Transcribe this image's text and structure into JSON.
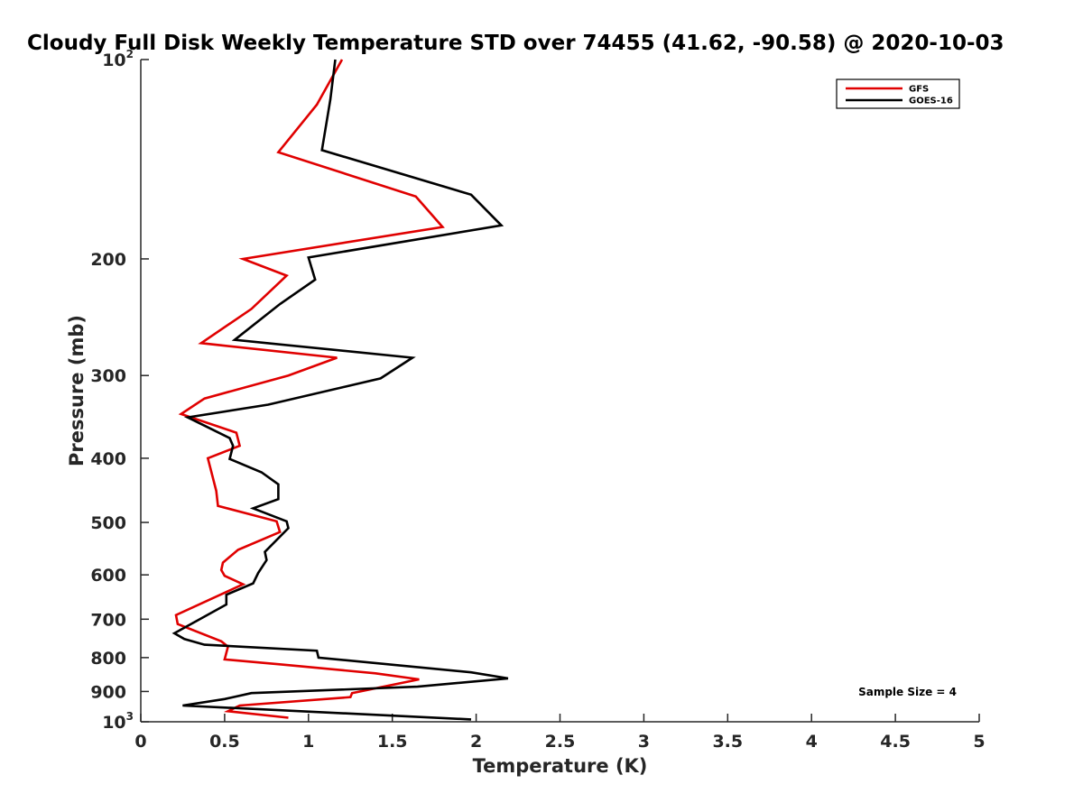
{
  "chart_data": {
    "type": "line",
    "title": "Cloudy Full Disk Weekly Temperature STD over 74455 (41.62, -90.58) @ 2020-10-03",
    "xlabel": "Temperature (K)",
    "ylabel": "Pressure (mb)",
    "xlim": [
      0,
      5
    ],
    "ylim": [
      100,
      1000
    ],
    "yscale": "log",
    "y_reversed": true,
    "grid": false,
    "legend_position": "top-right",
    "x_ticks": [
      "0",
      "0.5",
      "1",
      "1.5",
      "2",
      "2.5",
      "3",
      "3.5",
      "4",
      "4.5",
      "5"
    ],
    "y_ticks": [
      {
        "value": 100,
        "base": "10",
        "exp": "2"
      },
      {
        "value": 200,
        "label": "200"
      },
      {
        "value": 300,
        "label": "300"
      },
      {
        "value": 400,
        "label": "400"
      },
      {
        "value": 500,
        "label": "500"
      },
      {
        "value": 600,
        "label": "600"
      },
      {
        "value": 700,
        "label": "700"
      },
      {
        "value": 800,
        "label": "800"
      },
      {
        "value": 900,
        "label": "900"
      },
      {
        "value": 1000,
        "base": "10",
        "exp": "3"
      }
    ],
    "annotation": "Sample Size = 4",
    "series": [
      {
        "name": "GFS",
        "color": "#e00000",
        "points": [
          {
            "x": 1.2,
            "y": 100
          },
          {
            "x": 1.05,
            "y": 117
          },
          {
            "x": 0.82,
            "y": 138
          },
          {
            "x": 1.64,
            "y": 161
          },
          {
            "x": 1.8,
            "y": 179
          },
          {
            "x": 0.61,
            "y": 200
          },
          {
            "x": 0.87,
            "y": 212
          },
          {
            "x": 0.66,
            "y": 238
          },
          {
            "x": 0.36,
            "y": 268
          },
          {
            "x": 1.17,
            "y": 282
          },
          {
            "x": 0.88,
            "y": 300
          },
          {
            "x": 0.38,
            "y": 325
          },
          {
            "x": 0.24,
            "y": 343
          },
          {
            "x": 0.57,
            "y": 366
          },
          {
            "x": 0.59,
            "y": 383
          },
          {
            "x": 0.4,
            "y": 400
          },
          {
            "x": 0.45,
            "y": 448
          },
          {
            "x": 0.46,
            "y": 472
          },
          {
            "x": 0.81,
            "y": 498
          },
          {
            "x": 0.83,
            "y": 517
          },
          {
            "x": 0.58,
            "y": 550
          },
          {
            "x": 0.49,
            "y": 575
          },
          {
            "x": 0.48,
            "y": 590
          },
          {
            "x": 0.5,
            "y": 602
          },
          {
            "x": 0.61,
            "y": 620
          },
          {
            "x": 0.21,
            "y": 690
          },
          {
            "x": 0.22,
            "y": 712
          },
          {
            "x": 0.48,
            "y": 756
          },
          {
            "x": 0.52,
            "y": 770
          },
          {
            "x": 0.5,
            "y": 805
          },
          {
            "x": 0.85,
            "y": 820
          },
          {
            "x": 1.4,
            "y": 845
          },
          {
            "x": 1.66,
            "y": 863
          },
          {
            "x": 1.26,
            "y": 905
          },
          {
            "x": 1.25,
            "y": 918
          },
          {
            "x": 0.59,
            "y": 945
          },
          {
            "x": 0.52,
            "y": 964
          },
          {
            "x": 0.88,
            "y": 986
          }
        ]
      },
      {
        "name": "GOES-16",
        "color": "#000000",
        "points": [
          {
            "x": 1.16,
            "y": 100
          },
          {
            "x": 1.13,
            "y": 115
          },
          {
            "x": 1.08,
            "y": 137
          },
          {
            "x": 1.97,
            "y": 160
          },
          {
            "x": 2.15,
            "y": 178
          },
          {
            "x": 1.0,
            "y": 199
          },
          {
            "x": 1.04,
            "y": 215
          },
          {
            "x": 0.83,
            "y": 234
          },
          {
            "x": 0.56,
            "y": 265
          },
          {
            "x": 1.62,
            "y": 282
          },
          {
            "x": 1.43,
            "y": 303
          },
          {
            "x": 0.76,
            "y": 332
          },
          {
            "x": 0.28,
            "y": 347
          },
          {
            "x": 0.53,
            "y": 373
          },
          {
            "x": 0.55,
            "y": 383
          },
          {
            "x": 0.53,
            "y": 401
          },
          {
            "x": 0.72,
            "y": 420
          },
          {
            "x": 0.82,
            "y": 438
          },
          {
            "x": 0.82,
            "y": 461
          },
          {
            "x": 0.67,
            "y": 476
          },
          {
            "x": 0.87,
            "y": 498
          },
          {
            "x": 0.88,
            "y": 510
          },
          {
            "x": 0.74,
            "y": 554
          },
          {
            "x": 0.75,
            "y": 570
          },
          {
            "x": 0.7,
            "y": 596
          },
          {
            "x": 0.67,
            "y": 618
          },
          {
            "x": 0.51,
            "y": 643
          },
          {
            "x": 0.51,
            "y": 665
          },
          {
            "x": 0.2,
            "y": 735
          },
          {
            "x": 0.26,
            "y": 750
          },
          {
            "x": 0.38,
            "y": 765
          },
          {
            "x": 1.05,
            "y": 781
          },
          {
            "x": 1.06,
            "y": 800
          },
          {
            "x": 1.97,
            "y": 842
          },
          {
            "x": 2.19,
            "y": 860
          },
          {
            "x": 1.65,
            "y": 885
          },
          {
            "x": 0.66,
            "y": 905
          },
          {
            "x": 0.5,
            "y": 924
          },
          {
            "x": 0.25,
            "y": 945
          },
          {
            "x": 1.97,
            "y": 992
          }
        ]
      }
    ]
  }
}
